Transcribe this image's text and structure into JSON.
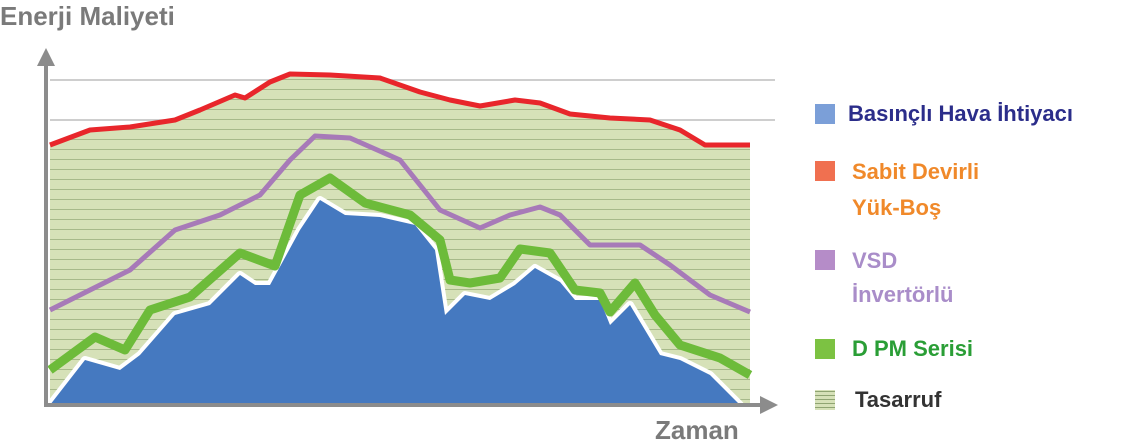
{
  "title": "Enerji Maliyeti",
  "x_axis_label": "Zaman",
  "legend": [
    {
      "lines": [
        "Basınçlı Hava İhtiyacı"
      ]
    },
    {
      "lines": [
        "Sabit Devirli",
        "Yük-Boş"
      ]
    },
    {
      "lines": [
        "VSD",
        "İnvertörlü"
      ]
    },
    {
      "lines": [
        "D PM Serisi"
      ]
    },
    {
      "lines": [
        "Tasarruf"
      ]
    }
  ]
}
